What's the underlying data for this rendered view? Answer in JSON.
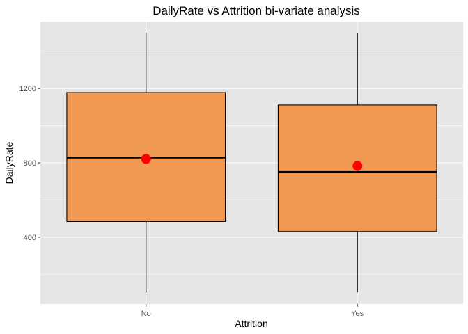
{
  "chart_data": {
    "type": "boxplot",
    "title": "DailyRate vs Attrition bi-variate analysis",
    "xlabel": "Attrition",
    "ylabel": "DailyRate",
    "ylim": [
      40,
      1560
    ],
    "y_ticks": [
      400,
      800,
      1200
    ],
    "grid": true,
    "categories": [
      "No",
      "Yes"
    ],
    "boxes": [
      {
        "category": "No",
        "whisker_low": 102,
        "q1": 484,
        "median": 828,
        "q3": 1178,
        "whisker_high": 1499,
        "mean": 821
      },
      {
        "category": "Yes",
        "whisker_low": 103,
        "q1": 430,
        "median": 751,
        "q3": 1111,
        "whisker_high": 1496,
        "mean": 783
      }
    ],
    "colors": {
      "panel": "#e5e5e5",
      "grid": "#ffffff",
      "box_fill": "#f19953",
      "box_stroke": "#000000",
      "mean_point": "#ff0000"
    }
  }
}
